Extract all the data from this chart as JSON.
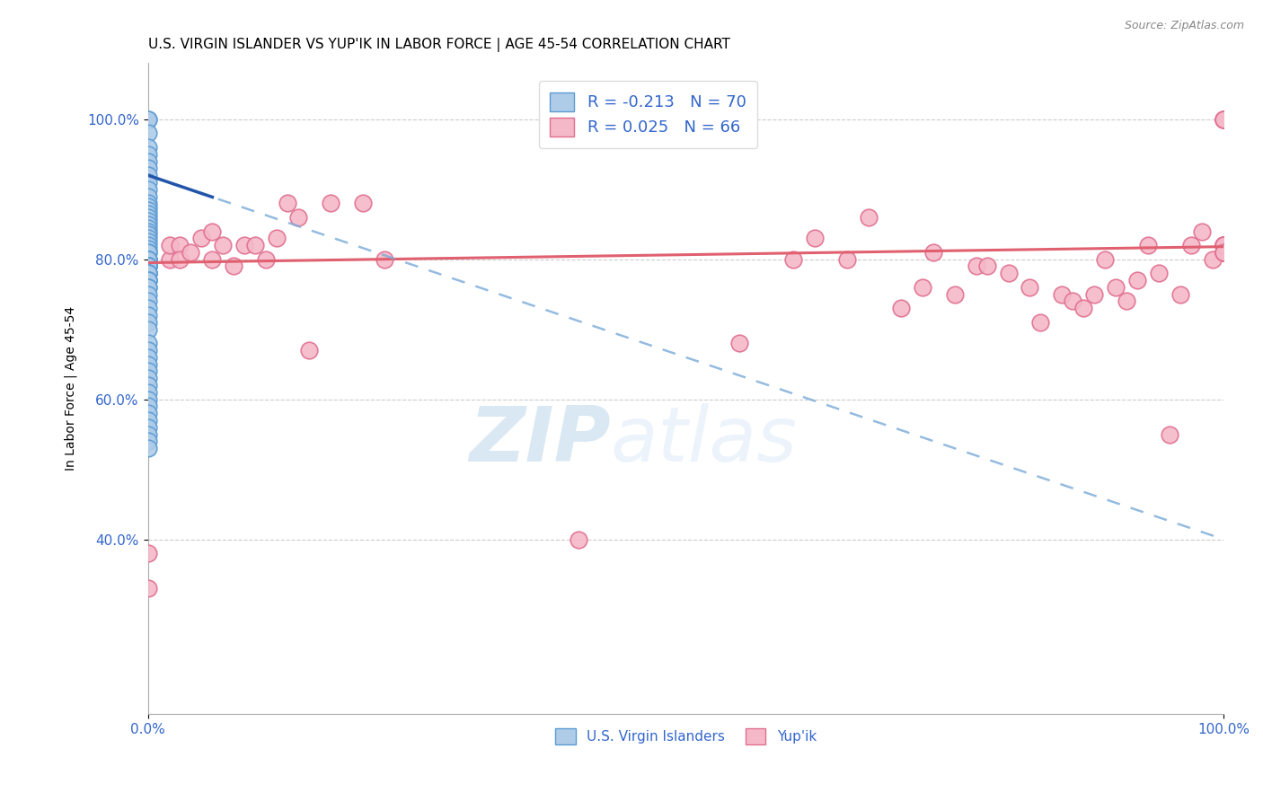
{
  "title": "U.S. VIRGIN ISLANDER VS YUP'IK IN LABOR FORCE | AGE 45-54 CORRELATION CHART",
  "source": "Source: ZipAtlas.com",
  "ylabel": "In Labor Force | Age 45-54",
  "r_blue": -0.213,
  "n_blue": 70,
  "r_pink": 0.025,
  "n_pink": 66,
  "legend_entries": [
    "U.S. Virgin Islanders",
    "Yup'ik"
  ],
  "blue_color": "#aecce8",
  "pink_color": "#f5b8c8",
  "blue_edge": "#5b9bd5",
  "pink_edge": "#e07090",
  "trend_blue_solid": "#2255aa",
  "trend_blue_dash": "#7aaad8",
  "trend_pink": "#e06070",
  "watermark_zip": "ZIP",
  "watermark_atlas": "atlas",
  "blue_scatter_x": [
    0.0,
    0.0,
    0.0,
    0.0,
    0.0,
    0.0,
    0.0,
    0.0,
    0.0,
    0.0,
    0.0,
    0.0,
    0.0,
    0.0,
    0.0,
    0.0,
    0.0,
    0.0,
    0.0,
    0.0,
    0.0,
    0.0,
    0.0,
    0.0,
    0.0,
    0.0,
    0.0,
    0.0,
    0.0,
    0.0,
    0.0,
    0.0,
    0.0,
    0.0,
    0.0,
    0.0,
    0.0,
    0.0,
    0.0,
    0.0,
    0.0,
    0.0,
    0.0,
    0.0,
    0.0,
    0.0,
    0.0,
    0.0,
    0.0,
    0.0,
    0.0,
    0.0,
    0.0,
    0.0,
    0.0,
    0.0,
    0.0,
    0.0,
    0.0,
    0.0,
    0.0,
    0.0,
    0.0,
    0.0,
    0.0,
    0.0,
    0.0,
    0.0,
    0.0,
    0.0
  ],
  "blue_scatter_y": [
    1.0,
    1.0,
    0.98,
    0.96,
    0.95,
    0.94,
    0.93,
    0.92,
    0.91,
    0.9,
    0.89,
    0.88,
    0.875,
    0.87,
    0.865,
    0.86,
    0.855,
    0.85,
    0.845,
    0.84,
    0.835,
    0.83,
    0.825,
    0.82,
    0.815,
    0.81,
    0.81,
    0.8,
    0.8,
    0.8,
    0.8,
    0.8,
    0.8,
    0.79,
    0.79,
    0.79,
    0.79,
    0.79,
    0.79,
    0.78,
    0.78,
    0.78,
    0.78,
    0.77,
    0.77,
    0.77,
    0.76,
    0.76,
    0.75,
    0.74,
    0.73,
    0.72,
    0.71,
    0.7,
    0.68,
    0.67,
    0.66,
    0.65,
    0.64,
    0.63,
    0.62,
    0.61,
    0.6,
    0.59,
    0.58,
    0.57,
    0.56,
    0.55,
    0.54,
    0.53
  ],
  "pink_scatter_x": [
    0.0,
    0.0,
    0.02,
    0.02,
    0.03,
    0.03,
    0.04,
    0.05,
    0.06,
    0.06,
    0.07,
    0.08,
    0.09,
    0.1,
    0.11,
    0.12,
    0.13,
    0.14,
    0.15,
    0.17,
    0.2,
    0.22,
    0.4,
    0.55,
    0.6,
    0.62,
    0.65,
    0.67,
    0.7,
    0.72,
    0.73,
    0.75,
    0.77,
    0.78,
    0.8,
    0.82,
    0.83,
    0.85,
    0.86,
    0.87,
    0.88,
    0.89,
    0.9,
    0.91,
    0.92,
    0.93,
    0.94,
    0.95,
    0.96,
    0.97,
    0.98,
    0.99,
    1.0,
    1.0,
    1.0,
    1.0,
    1.0,
    1.0,
    1.0,
    1.0,
    1.0,
    1.0,
    1.0,
    1.0,
    1.0,
    1.0
  ],
  "pink_scatter_y": [
    0.38,
    0.33,
    0.8,
    0.82,
    0.82,
    0.8,
    0.81,
    0.83,
    0.8,
    0.84,
    0.82,
    0.79,
    0.82,
    0.82,
    0.8,
    0.83,
    0.88,
    0.86,
    0.67,
    0.88,
    0.88,
    0.8,
    0.4,
    0.68,
    0.8,
    0.83,
    0.8,
    0.86,
    0.73,
    0.76,
    0.81,
    0.75,
    0.79,
    0.79,
    0.78,
    0.76,
    0.71,
    0.75,
    0.74,
    0.73,
    0.75,
    0.8,
    0.76,
    0.74,
    0.77,
    0.82,
    0.78,
    0.55,
    0.75,
    0.82,
    0.84,
    0.8,
    1.0,
    1.0,
    1.0,
    1.0,
    0.82,
    0.81,
    0.82,
    0.82,
    0.81,
    0.82,
    0.82,
    0.81,
    0.82,
    0.81
  ],
  "xlim": [
    0.0,
    1.0
  ],
  "ylim": [
    0.15,
    1.08
  ],
  "yticks": [
    0.4,
    0.6,
    0.8,
    1.0
  ],
  "ytick_labels": [
    "40.0%",
    "60.0%",
    "80.0%",
    "100.0%"
  ],
  "xtick_labels": [
    "0.0%",
    "100.0%"
  ],
  "title_fontsize": 11,
  "axis_label_fontsize": 10,
  "tick_fontsize": 11,
  "blue_trend_x0": 0.0,
  "blue_trend_y0": 0.92,
  "blue_trend_x1": 1.0,
  "blue_trend_y1": 0.4,
  "pink_trend_x0": 0.0,
  "pink_trend_y0": 0.795,
  "pink_trend_x1": 1.0,
  "pink_trend_y1": 0.818
}
